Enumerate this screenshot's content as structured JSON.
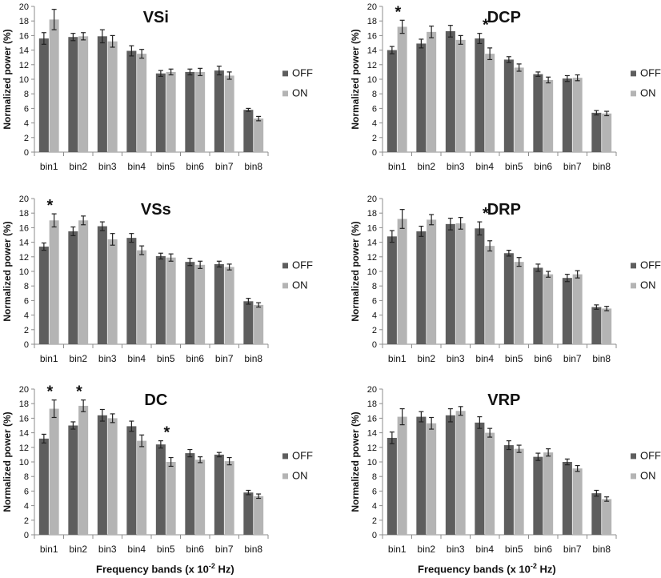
{
  "chart_data": [
    {
      "type": "bar",
      "title": "VSi",
      "categories": [
        "bin1",
        "bin2",
        "bin3",
        "bin4",
        "bin5",
        "bin6",
        "bin7",
        "bin8"
      ],
      "series": [
        {
          "name": "OFF",
          "values": [
            15.6,
            15.8,
            15.9,
            13.9,
            10.8,
            11.0,
            11.2,
            5.8
          ],
          "errors": [
            0.8,
            0.5,
            0.9,
            0.7,
            0.4,
            0.4,
            0.6,
            0.2
          ]
        },
        {
          "name": "ON",
          "values": [
            18.2,
            15.9,
            15.2,
            13.5,
            11.0,
            11.0,
            10.5,
            4.6
          ],
          "errors": [
            1.4,
            0.5,
            0.8,
            0.6,
            0.4,
            0.5,
            0.5,
            0.3
          ]
        }
      ],
      "significant": [],
      "ylabel": "Normalized power (%)",
      "xlabel": "",
      "ylim": [
        0,
        20
      ],
      "yticks": [
        0,
        2,
        4,
        6,
        8,
        10,
        12,
        14,
        16,
        18,
        20
      ]
    },
    {
      "type": "bar",
      "title": "DCP",
      "categories": [
        "bin1",
        "bin2",
        "bin3",
        "bin4",
        "bin5",
        "bin6",
        "bin7",
        "bin8"
      ],
      "series": [
        {
          "name": "OFF",
          "values": [
            14.0,
            14.9,
            16.6,
            15.6,
            12.7,
            10.7,
            10.1,
            5.4
          ],
          "errors": [
            0.5,
            0.6,
            0.8,
            0.7,
            0.4,
            0.3,
            0.4,
            0.3
          ]
        },
        {
          "name": "ON",
          "values": [
            17.2,
            16.5,
            15.4,
            13.5,
            11.6,
            9.9,
            10.2,
            5.3
          ],
          "errors": [
            0.9,
            0.8,
            0.6,
            0.8,
            0.5,
            0.4,
            0.4,
            0.3
          ]
        }
      ],
      "significant": [
        0,
        3
      ],
      "ylabel": "Normalized power (%)",
      "xlabel": "",
      "ylim": [
        0,
        20
      ],
      "yticks": [
        0,
        2,
        4,
        6,
        8,
        10,
        12,
        14,
        16,
        18,
        20
      ]
    },
    {
      "type": "bar",
      "title": "VSs",
      "categories": [
        "bin1",
        "bin2",
        "bin3",
        "bin4",
        "bin5",
        "bin6",
        "bin7",
        "bin8"
      ],
      "series": [
        {
          "name": "OFF",
          "values": [
            13.4,
            15.5,
            16.2,
            14.6,
            12.1,
            11.3,
            11.0,
            5.9
          ],
          "errors": [
            0.5,
            0.6,
            0.6,
            0.6,
            0.4,
            0.5,
            0.4,
            0.4
          ]
        },
        {
          "name": "ON",
          "values": [
            17.0,
            17.0,
            14.4,
            12.9,
            11.9,
            10.9,
            10.6,
            5.4
          ],
          "errors": [
            0.9,
            0.6,
            0.8,
            0.6,
            0.5,
            0.5,
            0.4,
            0.3
          ]
        }
      ],
      "significant": [
        0
      ],
      "ylabel": "Normalized power (%)",
      "xlabel": "",
      "ylim": [
        0,
        20
      ],
      "yticks": [
        0,
        2,
        4,
        6,
        8,
        10,
        12,
        14,
        16,
        18,
        20
      ]
    },
    {
      "type": "bar",
      "title": "DRP",
      "categories": [
        "bin1",
        "bin2",
        "bin3",
        "bin4",
        "bin5",
        "bin6",
        "bin7",
        "bin8"
      ],
      "series": [
        {
          "name": "OFF",
          "values": [
            14.8,
            15.5,
            16.5,
            15.9,
            12.5,
            10.5,
            9.1,
            5.1
          ],
          "errors": [
            0.8,
            0.7,
            0.8,
            0.9,
            0.4,
            0.5,
            0.5,
            0.3
          ]
        },
        {
          "name": "ON",
          "values": [
            17.2,
            17.1,
            16.6,
            13.5,
            11.3,
            9.6,
            9.6,
            4.9
          ],
          "errors": [
            1.3,
            0.7,
            0.8,
            0.7,
            0.6,
            0.4,
            0.5,
            0.3
          ]
        }
      ],
      "significant": [
        3
      ],
      "ylabel": "Normalized power (%)",
      "xlabel": "",
      "ylim": [
        0,
        20
      ],
      "yticks": [
        0,
        2,
        4,
        6,
        8,
        10,
        12,
        14,
        16,
        18,
        20
      ]
    },
    {
      "type": "bar",
      "title": "DC",
      "categories": [
        "bin1",
        "bin2",
        "bin3",
        "bin4",
        "bin5",
        "bin6",
        "bin7",
        "bin8"
      ],
      "series": [
        {
          "name": "OFF",
          "values": [
            13.2,
            15.0,
            16.4,
            14.9,
            12.4,
            11.2,
            11.0,
            5.8
          ],
          "errors": [
            0.6,
            0.5,
            0.8,
            0.7,
            0.5,
            0.5,
            0.3,
            0.3
          ]
        },
        {
          "name": "ON",
          "values": [
            17.3,
            17.7,
            16.0,
            12.9,
            10.0,
            10.3,
            10.1,
            5.3
          ],
          "errors": [
            1.2,
            0.8,
            0.6,
            0.8,
            0.6,
            0.4,
            0.5,
            0.3
          ]
        }
      ],
      "significant": [
        0,
        1,
        4
      ],
      "ylabel": "Normalized power (%)",
      "xlabel": "Frequency bands (x 10-2 Hz)",
      "ylim": [
        0,
        20
      ],
      "yticks": [
        0,
        2,
        4,
        6,
        8,
        10,
        12,
        14,
        16,
        18,
        20
      ]
    },
    {
      "type": "bar",
      "title": "VRP",
      "categories": [
        "bin1",
        "bin2",
        "bin3",
        "bin4",
        "bin5",
        "bin6",
        "bin7",
        "bin8"
      ],
      "series": [
        {
          "name": "OFF",
          "values": [
            13.3,
            16.2,
            16.4,
            15.4,
            12.3,
            10.7,
            10.0,
            5.7
          ],
          "errors": [
            0.8,
            0.7,
            0.9,
            0.8,
            0.6,
            0.5,
            0.4,
            0.4
          ]
        },
        {
          "name": "ON",
          "values": [
            16.2,
            15.3,
            17.0,
            14.0,
            11.8,
            11.3,
            9.1,
            4.9
          ],
          "errors": [
            1.1,
            0.8,
            0.6,
            0.6,
            0.5,
            0.5,
            0.4,
            0.3
          ]
        }
      ],
      "significant": [],
      "ylabel": "Normalized power (%)",
      "xlabel": "Frequency bands (x 10-2 Hz)",
      "ylim": [
        0,
        20
      ],
      "yticks": [
        0,
        2,
        4,
        6,
        8,
        10,
        12,
        14,
        16,
        18,
        20
      ]
    }
  ],
  "colors": {
    "off": "#5e5e5e",
    "on": "#b4b4b4",
    "axis": "#8c8c8c",
    "text": "#111111"
  },
  "labels": {
    "significance_marker": "*",
    "xlabel_main": "Frequency bands (x 10",
    "xlabel_exp": "-2",
    "xlabel_unit": " Hz)"
  }
}
